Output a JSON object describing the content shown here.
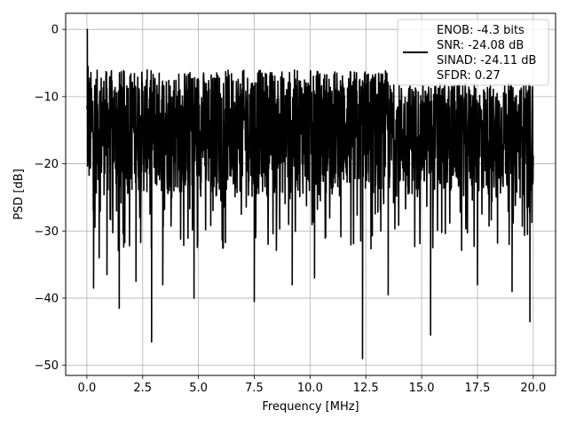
{
  "chart_data": {
    "type": "line",
    "title": "",
    "xlabel": "Frequency [MHz]",
    "ylabel": "PSD [dB]",
    "xlim": [
      -0.95,
      21.0
    ],
    "ylim": [
      -51.5,
      2.4
    ],
    "xticks": [
      0.0,
      2.5,
      5.0,
      7.5,
      10.0,
      12.5,
      15.0,
      17.5,
      20.0
    ],
    "xtick_labels": [
      "0.0",
      "2.5",
      "5.0",
      "7.5",
      "10.0",
      "12.5",
      "15.0",
      "17.5",
      "20.0"
    ],
    "yticks": [
      0,
      -10,
      -20,
      -30,
      -40,
      -50
    ],
    "ytick_labels": [
      "0",
      "−10",
      "−20",
      "−30",
      "−40",
      "−50"
    ],
    "grid": true,
    "legend_position": "top-right",
    "legend": [
      "ENOB: -4.3 bits",
      "SNR: -24.08 dB",
      "SINAD: -24.11 dB",
      "SFDR: 0.27"
    ],
    "line_color": "#000000",
    "series": [
      {
        "x_start": 0.0,
        "x_end": 20.0,
        "noise_floor_max": -6,
        "noise_floor_min": -25,
        "peaks": [
          {
            "x": 0.02,
            "y": 0.0
          },
          {
            "x": 0.05,
            "y": -5.5
          },
          {
            "x": 0.1,
            "y": -13.0
          }
        ],
        "notable_minima": [
          {
            "x": 0.3,
            "y": -38.5
          },
          {
            "x": 0.55,
            "y": -34.0
          },
          {
            "x": 0.9,
            "y": -36.5
          },
          {
            "x": 1.45,
            "y": -41.5
          },
          {
            "x": 2.2,
            "y": -37.5
          },
          {
            "x": 2.9,
            "y": -46.5
          },
          {
            "x": 3.4,
            "y": -38.0
          },
          {
            "x": 4.8,
            "y": -40.0
          },
          {
            "x": 7.5,
            "y": -40.5
          },
          {
            "x": 9.2,
            "y": -38.0
          },
          {
            "x": 10.2,
            "y": -37.0
          },
          {
            "x": 12.35,
            "y": -49.0
          },
          {
            "x": 13.5,
            "y": -39.5
          },
          {
            "x": 15.4,
            "y": -45.5
          },
          {
            "x": 17.5,
            "y": -38.0
          },
          {
            "x": 19.05,
            "y": -39.0
          },
          {
            "x": 19.85,
            "y": -43.5
          }
        ]
      }
    ]
  }
}
